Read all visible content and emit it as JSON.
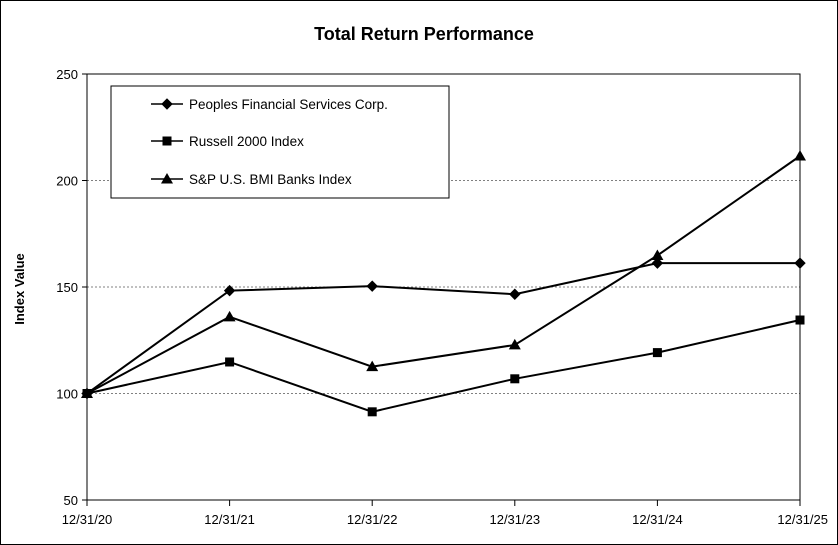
{
  "chart_data": {
    "type": "line",
    "title": "Total Return Performance",
    "xlabel": "",
    "ylabel": "Index Value",
    "categories": [
      "12/31/20",
      "12/31/21",
      "12/31/22",
      "12/31/23",
      "12/31/24",
      "12/31/25"
    ],
    "ylim": [
      50,
      250
    ],
    "yticks": [
      50,
      100,
      150,
      200,
      250
    ],
    "grid": true,
    "legend_position": "top-left",
    "line_color": "#000000",
    "series": [
      {
        "name": "Peoples Financial Services Corp.",
        "marker": "diamond",
        "values": [
          100,
          148.3,
          150.4,
          146.6,
          161.2,
          161.2
        ]
      },
      {
        "name": "Russell 2000 Index",
        "marker": "square",
        "values": [
          100,
          114.8,
          91.4,
          106.9,
          119.2,
          134.5
        ]
      },
      {
        "name": "S&P U.S. BMI Banks Index",
        "marker": "triangle",
        "values": [
          100,
          136.0,
          112.6,
          122.8,
          164.8,
          211.5
        ]
      }
    ]
  }
}
